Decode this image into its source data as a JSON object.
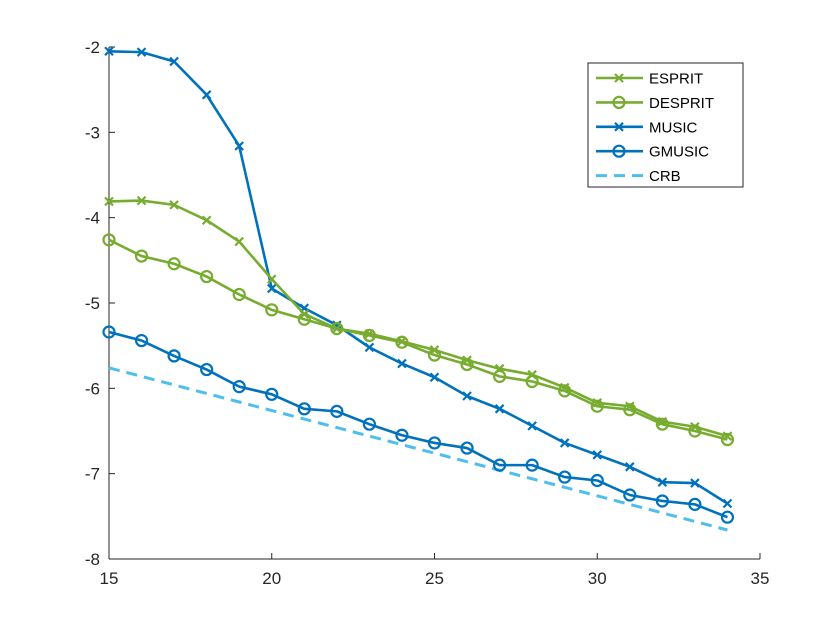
{
  "chart_data": {
    "type": "line",
    "title": "",
    "xlabel": "",
    "ylabel": "",
    "xlim": [
      15,
      35
    ],
    "ylim": [
      -8,
      -2
    ],
    "x_ticks": [
      15,
      20,
      25,
      30,
      35
    ],
    "y_ticks": [
      -2,
      -3,
      -4,
      -5,
      -6,
      -7,
      -8
    ],
    "x_tick_labels": [
      "15",
      "20",
      "25",
      "30",
      "35"
    ],
    "y_tick_labels": [
      "-2",
      "-3",
      "-4",
      "-5",
      "-6",
      "-7",
      "-8"
    ],
    "grid": false,
    "legend_position": "top-right",
    "x": [
      15,
      16,
      17,
      18,
      19,
      20,
      21,
      22,
      23,
      24,
      25,
      26,
      27,
      28,
      29,
      30,
      31,
      32,
      33,
      34
    ],
    "series": [
      {
        "name": "ESPRIT",
        "color": "#77AC30",
        "marker": "x",
        "line": "solid",
        "values": [
          -3.81,
          -3.8,
          -3.85,
          -4.03,
          -4.28,
          -4.72,
          -5.13,
          -5.3,
          -5.36,
          -5.45,
          -5.55,
          -5.67,
          -5.77,
          -5.84,
          -5.99,
          -6.17,
          -6.21,
          -6.39,
          -6.45,
          -6.56
        ]
      },
      {
        "name": "DESPRIT",
        "color": "#77AC30",
        "marker": "o",
        "line": "solid",
        "values": [
          -4.26,
          -4.45,
          -4.54,
          -4.69,
          -4.9,
          -5.08,
          -5.19,
          -5.3,
          -5.38,
          -5.46,
          -5.61,
          -5.72,
          -5.86,
          -5.92,
          -6.03,
          -6.21,
          -6.25,
          -6.42,
          -6.5,
          -6.6
        ]
      },
      {
        "name": "MUSIC",
        "color": "#0072BD",
        "marker": "x",
        "line": "solid",
        "values": [
          -2.05,
          -2.06,
          -2.17,
          -2.56,
          -3.16,
          -4.83,
          -5.06,
          -5.26,
          -5.52,
          -5.71,
          -5.87,
          -6.09,
          -6.24,
          -6.44,
          -6.64,
          -6.78,
          -6.92,
          -7.1,
          -7.11,
          -7.35
        ]
      },
      {
        "name": "GMUSIC",
        "color": "#0072BD",
        "marker": "o",
        "line": "solid",
        "values": [
          -5.34,
          -5.44,
          -5.62,
          -5.78,
          -5.98,
          -6.07,
          -6.24,
          -6.27,
          -6.42,
          -6.55,
          -6.64,
          -6.7,
          -6.9,
          -6.9,
          -7.04,
          -7.08,
          -7.25,
          -7.32,
          -7.36,
          -7.51
        ]
      },
      {
        "name": "CRB",
        "color": "#4DBEEE",
        "marker": "none",
        "line": "dashed",
        "values": [
          -5.76,
          -5.86,
          -5.96,
          -6.06,
          -6.16,
          -6.26,
          -6.36,
          -6.46,
          -6.56,
          -6.66,
          -6.76,
          -6.86,
          -6.96,
          -7.06,
          -7.16,
          -7.26,
          -7.36,
          -7.46,
          -7.56,
          -7.66
        ]
      }
    ]
  }
}
